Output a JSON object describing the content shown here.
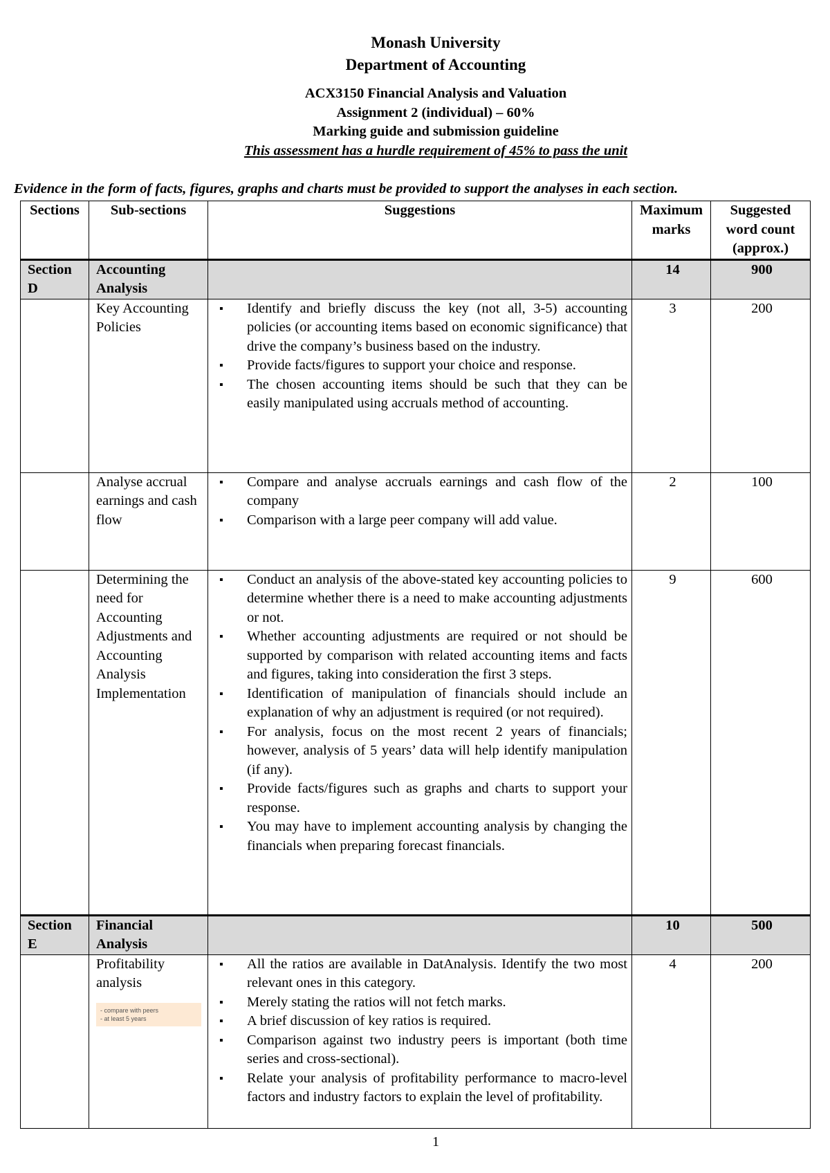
{
  "header": {
    "university": "Monash University",
    "department": "Department of Accounting",
    "unit": "ACX3150 Financial Analysis and Valuation",
    "assignment": "Assignment 2 (individual) – 60%",
    "guide": "Marking guide and submission guideline",
    "hurdle": "This assessment has a hurdle requirement of 45% to pass the unit"
  },
  "evidence": "Evidence in the form of facts, figures, graphs and charts must be provided to support the analyses in each section.",
  "table": {
    "columns": [
      "Sections",
      "Sub-sections",
      "Suggestions",
      "Maximum marks",
      "Suggested word count (approx.)"
    ],
    "sectionD": {
      "section": "Section D",
      "title": "Accounting Analysis",
      "marks": "14",
      "words": "900"
    },
    "rowsD": [
      {
        "sub": "Key Accounting Policies",
        "marks": "3",
        "words": "200",
        "bullets": [
          "Identify and briefly discuss the key (not all, 3-5) accounting policies (or accounting items based on economic significance) that drive the company’s business based on the industry.",
          "Provide facts/figures to support your choice and response.",
          "The chosen accounting items should be such that they can be easily manipulated using accruals method of accounting."
        ]
      },
      {
        "sub": "Analyse accrual earnings and cash flow",
        "marks": "2",
        "words": "100",
        "bullets": [
          "Compare and analyse accruals earnings and cash flow of the company",
          "Comparison with a large peer company will add value."
        ]
      },
      {
        "sub": "Determining the need for Accounting Adjustments and Accounting Analysis Implementation",
        "marks": "9",
        "words": "600",
        "bullets": [
          "Conduct an analysis of the above-stated key accounting policies to determine whether there is a need to make accounting adjustments or not.",
          "Whether accounting adjustments are required or not should be supported by comparison with related accounting items and facts and figures, taking into consideration the first 3 steps.",
          "Identification of manipulation of financials should include an explanation of why an adjustment is required (or not required).",
          "For analysis, focus on the most recent 2 years of financials; however, analysis of 5 years’ data will help identify manipulation (if any).",
          "Provide facts/figures such as graphs and charts to support your response.",
          "You may have to implement accounting analysis by changing the financials when preparing forecast financials."
        ]
      }
    ],
    "sectionE": {
      "section": "Section E",
      "title": "Financial Analysis",
      "marks": "10",
      "words": "500"
    },
    "rowsE": [
      {
        "sub": "Profitability analysis",
        "marks": "4",
        "words": "200",
        "note": [
          "- compare with peers",
          "- at least 5 years"
        ],
        "bullets": [
          "All the ratios are available in DatAnalysis. Identify the two most relevant ones in this category.",
          "Merely stating the ratios will not fetch marks.",
          "A brief discussion of key ratios is required.",
          "Comparison against two industry peers is important (both time series and cross-sectional).",
          "Relate your analysis of profitability performance to macro-level factors and industry factors to explain the level of profitability."
        ]
      }
    ]
  },
  "page_number": "1"
}
